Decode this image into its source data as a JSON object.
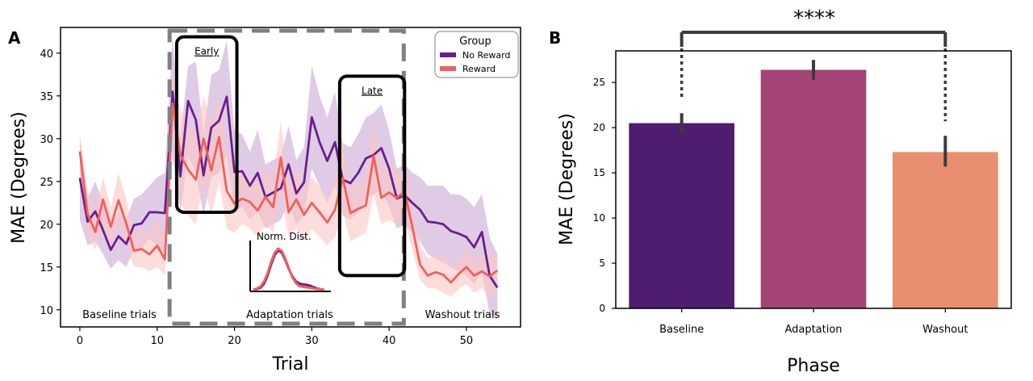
{
  "colors": {
    "no_reward": "#6a1f8a",
    "reward": "#f0605d",
    "no_reward_band": "#c9a9d6",
    "reward_band": "#fbc7c3",
    "dashed_box": "#808080",
    "bar_baseline": "#4f1d6f",
    "bar_adaptation": "#a44576",
    "bar_washout": "#e78f6f",
    "errorbar": "#3c3c3c"
  },
  "panel_a": {
    "letter": "A",
    "region_labels": {
      "baseline": "Baseline trials",
      "adaptation": "Adaptation trials",
      "washout": "Washout trials"
    },
    "box_labels": {
      "early": "Early",
      "late": "Late"
    },
    "inset_title": "Norm.  Dist.",
    "legend": {
      "title": "Group",
      "entries": [
        "No Reward",
        "Reward"
      ]
    }
  },
  "panel_b": {
    "letter": "B",
    "significance": "****"
  },
  "chart_data": [
    {
      "type": "line",
      "xlabel": "Trial",
      "ylabel": "MAE (Degrees)",
      "xlim": [
        -2.5,
        57
      ],
      "ylim": [
        8,
        43
      ],
      "xticks": [
        0,
        10,
        20,
        30,
        40,
        50
      ],
      "yticks": [
        10,
        15,
        20,
        25,
        30,
        35,
        40
      ],
      "legend_position": "top-right",
      "x": [
        0,
        1,
        2,
        3,
        4,
        5,
        6,
        7,
        8,
        9,
        10,
        11,
        12,
        13,
        14,
        15,
        16,
        17,
        18,
        19,
        20,
        21,
        22,
        23,
        24,
        25,
        26,
        27,
        28,
        29,
        30,
        31,
        32,
        33,
        34,
        35,
        36,
        37,
        38,
        39,
        40,
        41,
        42,
        43,
        44,
        45,
        46,
        47,
        48,
        49,
        50,
        51,
        52,
        53,
        54
      ],
      "series": [
        {
          "name": "No Reward",
          "values": [
            25.4,
            20.3,
            21.5,
            19.3,
            17.0,
            18.6,
            17.7,
            19.9,
            20.1,
            21.4,
            21.4,
            21.3,
            35.5,
            25.6,
            34.4,
            32.2,
            25.7,
            31.3,
            32.1,
            34.9,
            26.1,
            26.2,
            24.5,
            26.0,
            23.2,
            23.7,
            24.2,
            27.0,
            23.6,
            24.9,
            32.5,
            29.6,
            27.4,
            29.6,
            25.2,
            24.8,
            26.0,
            27.7,
            28.1,
            28.9,
            26.5,
            23.0,
            23.4,
            22.5,
            21.7,
            20.3,
            20.2,
            20.0,
            19.2,
            18.9,
            18.5,
            17.3,
            19.1,
            14.0,
            12.6
          ],
          "lower": [
            20.5,
            17.5,
            18.0,
            16.5,
            14.8,
            15.8,
            15.0,
            17.0,
            17.2,
            18.3,
            17.5,
            16.5,
            28.0,
            21.5,
            28.0,
            26.0,
            21.0,
            25.5,
            26.0,
            28.0,
            21.5,
            22.0,
            20.5,
            21.5,
            19.5,
            20.0,
            20.5,
            22.5,
            20.0,
            21.0,
            26.5,
            24.5,
            22.5,
            24.5,
            21.0,
            20.5,
            21.5,
            23.0,
            23.5,
            24.0,
            22.0,
            19.5,
            20.0,
            19.0,
            18.0,
            16.5,
            16.0,
            15.5,
            15.0,
            14.5,
            14.0,
            13.0,
            14.5,
            9.5,
            9.0
          ],
          "upper": [
            30.0,
            23.0,
            25.0,
            22.5,
            19.5,
            21.5,
            20.5,
            23.0,
            23.5,
            24.5,
            25.5,
            26.0,
            42.0,
            30.0,
            38.5,
            39.0,
            30.5,
            37.5,
            38.0,
            41.5,
            31.0,
            30.5,
            28.5,
            31.0,
            27.0,
            27.5,
            28.0,
            31.5,
            27.5,
            29.0,
            38.5,
            35.0,
            32.5,
            35.5,
            29.5,
            29.0,
            30.5,
            32.5,
            33.0,
            34.0,
            31.0,
            26.5,
            27.0,
            26.0,
            25.5,
            24.5,
            24.5,
            24.5,
            23.5,
            23.5,
            23.0,
            22.0,
            23.5,
            18.5,
            16.5
          ]
        },
        {
          "name": "Reward",
          "values": [
            28.5,
            21.2,
            19.1,
            22.9,
            19.7,
            22.8,
            20.1,
            16.9,
            17.1,
            16.5,
            17.5,
            15.9,
            34.1,
            28.1,
            26.4,
            25.2,
            30.0,
            26.3,
            30.2,
            23.9,
            22.4,
            23.0,
            22.6,
            21.6,
            23.2,
            22.0,
            27.8,
            21.4,
            22.9,
            21.1,
            22.5,
            21.4,
            20.2,
            21.7,
            25.4,
            21.3,
            21.8,
            22.2,
            28.0,
            23.1,
            23.7,
            23.1,
            23.8,
            19.7,
            15.3,
            14.0,
            14.4,
            14.1,
            13.2,
            14.2,
            15.0,
            14.0,
            14.5,
            13.9,
            14.6
          ],
          "lower": [
            26.0,
            18.5,
            17.0,
            20.0,
            17.5,
            20.0,
            17.5,
            15.0,
            15.0,
            14.5,
            15.0,
            14.0,
            31.0,
            22.5,
            21.0,
            20.0,
            25.0,
            21.0,
            25.0,
            19.5,
            19.0,
            20.0,
            19.5,
            18.5,
            20.0,
            19.0,
            23.5,
            18.5,
            19.5,
            18.0,
            19.5,
            18.5,
            17.5,
            18.5,
            21.5,
            18.0,
            18.5,
            19.0,
            23.5,
            20.0,
            20.5,
            20.0,
            20.5,
            17.0,
            13.5,
            12.5,
            12.5,
            12.0,
            11.5,
            12.5,
            13.0,
            12.0,
            12.5,
            11.5,
            12.5
          ],
          "upper": [
            30.5,
            24.0,
            21.5,
            25.5,
            22.0,
            26.0,
            23.0,
            19.0,
            19.5,
            19.0,
            20.5,
            18.0,
            37.0,
            33.5,
            31.5,
            30.5,
            35.0,
            31.5,
            35.0,
            28.5,
            26.5,
            26.0,
            25.5,
            25.0,
            26.5,
            25.0,
            32.0,
            24.5,
            26.5,
            24.5,
            25.5,
            24.5,
            23.0,
            25.0,
            29.5,
            24.5,
            25.0,
            25.5,
            32.0,
            26.5,
            27.0,
            26.0,
            27.0,
            22.5,
            17.5,
            16.0,
            16.5,
            16.5,
            15.0,
            16.0,
            17.0,
            16.0,
            16.5,
            16.5,
            16.5
          ]
        }
      ],
      "phase_boundaries": [
        11.5,
        42
      ],
      "early_window": [
        12,
        20
      ],
      "late_window": [
        33.5,
        42
      ],
      "inset": {
        "title": "Norm.  Dist.",
        "x": [
          0,
          1,
          2,
          3,
          4,
          5,
          6,
          7,
          8,
          9,
          10,
          11,
          12,
          13,
          14,
          15,
          16,
          17,
          18,
          19,
          20
        ],
        "series": [
          {
            "name": "No Reward",
            "values": [
              0.0,
              0.02,
              0.05,
              0.15,
              0.35,
              0.62,
              0.85,
              0.96,
              0.9,
              0.72,
              0.5,
              0.32,
              0.2,
              0.15,
              0.13,
              0.12,
              0.1,
              0.06,
              0.03,
              0.01,
              0.0
            ]
          },
          {
            "name": "Reward",
            "values": [
              0.0,
              0.03,
              0.08,
              0.2,
              0.4,
              0.68,
              0.9,
              1.0,
              0.94,
              0.75,
              0.52,
              0.3,
              0.16,
              0.09,
              0.07,
              0.06,
              0.05,
              0.03,
              0.02,
              0.01,
              0.0
            ]
          }
        ]
      }
    },
    {
      "type": "bar",
      "xlabel": "Phase",
      "ylabel": "MAE (Degrees)",
      "categories": [
        "Baseline",
        "Adaptation",
        "Washout"
      ],
      "values": [
        20.5,
        26.4,
        17.3
      ],
      "error_low": [
        19.3,
        25.3,
        15.7
      ],
      "error_high": [
        21.6,
        27.5,
        19.1
      ],
      "ylim": [
        0,
        28.5
      ],
      "yticks": [
        0,
        5,
        10,
        15,
        20,
        25
      ],
      "significance": {
        "between": [
          "Baseline",
          "Washout"
        ],
        "label": "****"
      }
    }
  ]
}
